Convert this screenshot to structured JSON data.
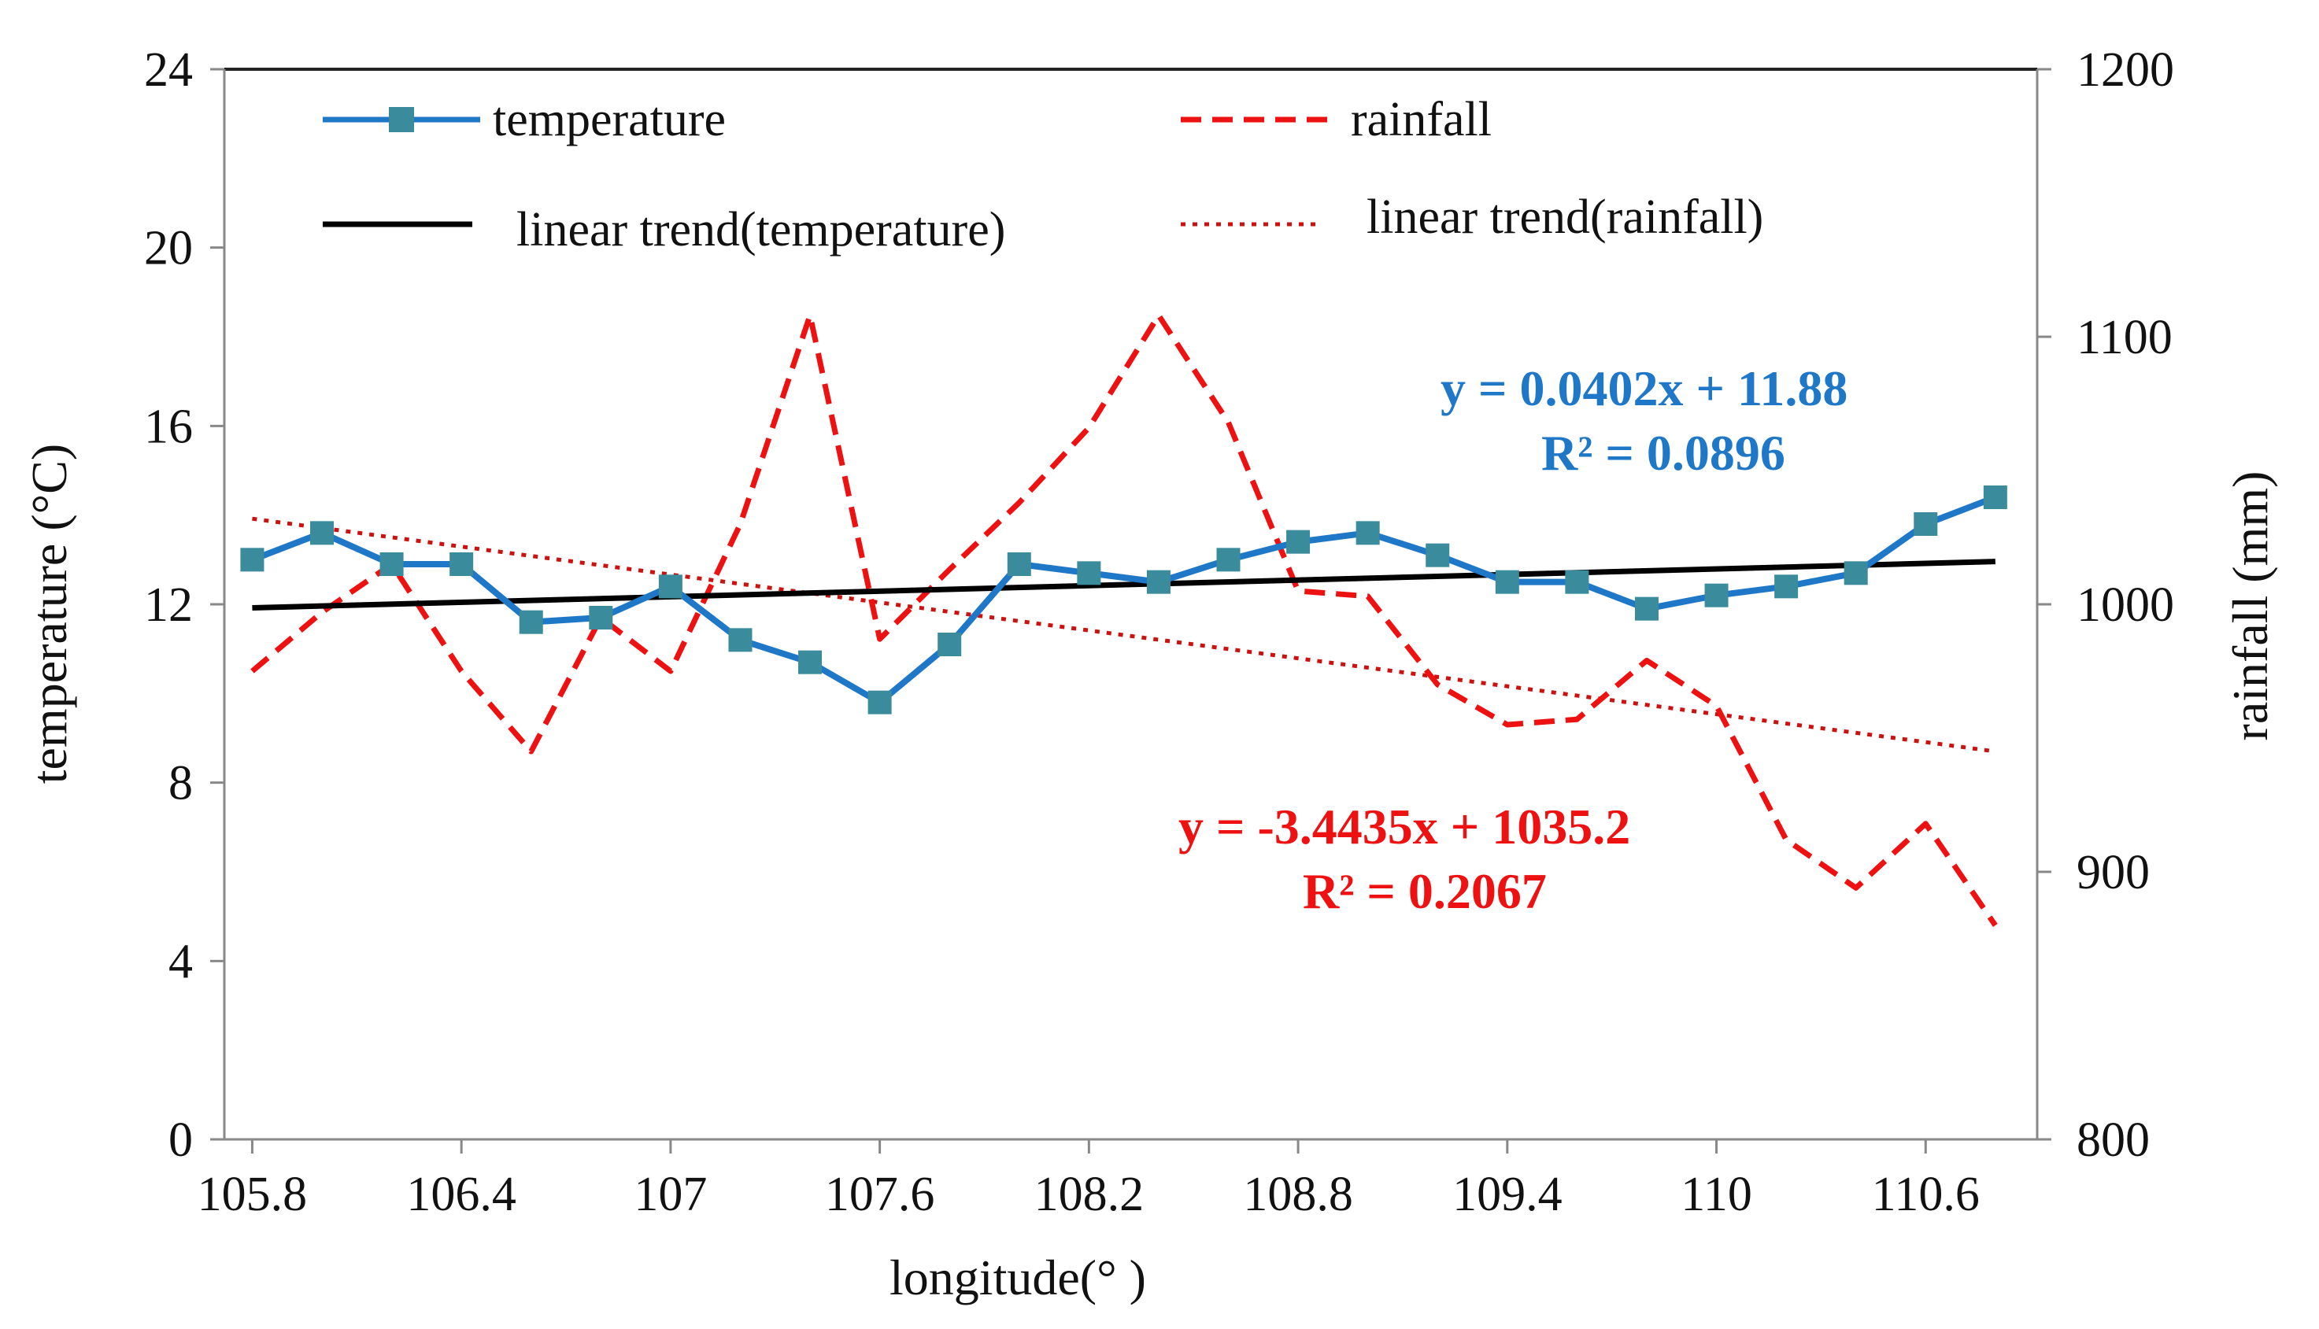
{
  "chart_data": {
    "type": "line",
    "xlabel": "longitude(°  )",
    "ylabel_left": "temperature (°C)",
    "ylabel_right": "rainfall (mm)",
    "xlim": [
      105.72,
      110.92
    ],
    "ylim_left": [
      0,
      24
    ],
    "ylim_right": [
      800,
      1200
    ],
    "x_ticks": [
      105.8,
      106.4,
      107,
      107.6,
      108.2,
      108.8,
      109.4,
      110,
      110.6
    ],
    "x_tick_labels": [
      "105.8",
      "106.4",
      "107",
      "107.6",
      "108.2",
      "108.8",
      "109.4",
      "110",
      "110.6"
    ],
    "y_left_ticks": [
      0,
      4,
      8,
      12,
      16,
      20,
      24
    ],
    "y_left_tick_labels": [
      "0",
      "4",
      "8",
      "12",
      "16",
      "20",
      "24"
    ],
    "y_right_ticks": [
      800,
      900,
      1000,
      1100,
      1200
    ],
    "y_right_tick_labels": [
      "800",
      "900",
      "1000",
      "1100",
      "1200"
    ],
    "x": [
      105.8,
      106.0,
      106.2,
      106.4,
      106.6,
      106.8,
      107.0,
      107.2,
      107.4,
      107.6,
      107.8,
      108.0,
      108.2,
      108.4,
      108.6,
      108.8,
      109.0,
      109.2,
      109.4,
      109.6,
      109.8,
      110.0,
      110.2,
      110.4,
      110.6,
      110.8
    ],
    "series": [
      {
        "name": "temperature",
        "axis": "left",
        "color": "#1f77c8",
        "style": "solid-square-markers",
        "values": [
          13.0,
          13.6,
          12.9,
          12.9,
          11.6,
          11.7,
          12.4,
          11.2,
          10.7,
          9.8,
          11.1,
          12.9,
          12.7,
          12.5,
          13.0,
          13.4,
          13.6,
          13.1,
          12.5,
          12.5,
          11.9,
          12.2,
          12.4,
          12.7,
          13.8,
          14.4
        ]
      },
      {
        "name": "rainfall",
        "axis": "right",
        "color": "#ee1111",
        "style": "dashed",
        "values": [
          975,
          997,
          1015,
          975,
          945,
          995,
          975,
          1030,
          1108,
          987,
          1013,
          1038,
          1066,
          1108,
          1068,
          1005,
          1003,
          970,
          955,
          957,
          979,
          962,
          912,
          894,
          918,
          880
        ]
      },
      {
        "name": "linear trend(temperature)",
        "axis": "left",
        "color": "#000000",
        "style": "solid",
        "trend_endpoints": [
          [
            105.8,
            11.92
          ],
          [
            110.8,
            12.96
          ]
        ]
      },
      {
        "name": "linear trend(rainfall)",
        "axis": "right",
        "color": "#cc1111",
        "style": "dotted",
        "trend_endpoints": [
          [
            105.8,
            1032
          ],
          [
            110.8,
            945
          ]
        ]
      }
    ],
    "legend": {
      "placement": "top",
      "entries": [
        "temperature",
        "rainfall",
        "linear trend(temperature)",
        "linear trend(rainfall)"
      ]
    },
    "annotations": [
      {
        "text": "y = 0.0402x + 11.88",
        "color": "#1f77c8"
      },
      {
        "text": "R² = 0.0896",
        "color": "#1f77c8"
      },
      {
        "text": "y = -3.4435x + 1035.2",
        "color": "#ee1111"
      },
      {
        "text": "R² = 0.2067",
        "color": "#ee1111"
      }
    ],
    "grid": false
  }
}
